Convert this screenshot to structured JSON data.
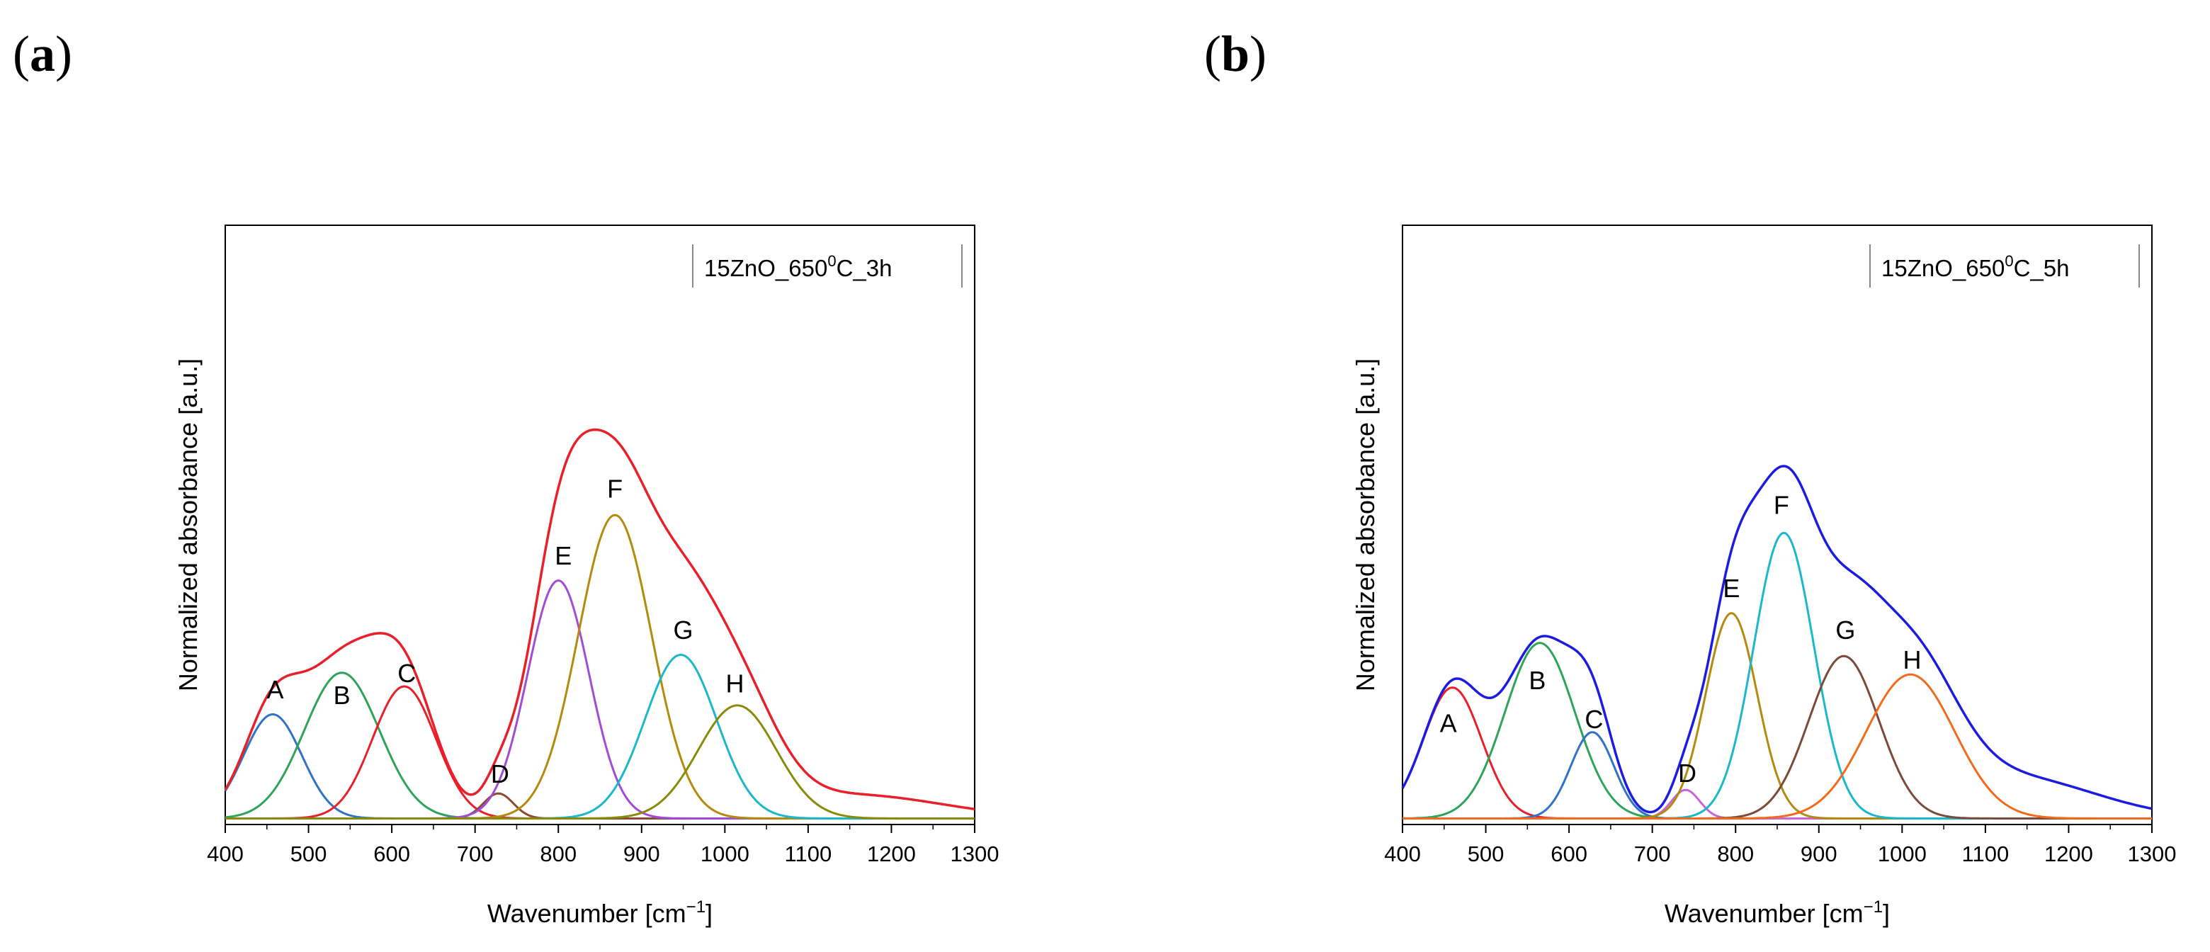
{
  "figure": {
    "panels": [
      "a",
      "b"
    ]
  },
  "chart_data": [
    {
      "type": "line",
      "panel_label": "a",
      "legend": {
        "text": "15ZnO_650",
        "sup": "0",
        "suffix": "C_3h",
        "placement": "top-right"
      },
      "xlabel": "Wavenumber [cm",
      "xlabel_sup": "−1",
      "xlabel_close": "]",
      "ylabel": "Normalized absorbance [a.u.]",
      "xlim": [
        400,
        1300
      ],
      "ylim": [
        0,
        1
      ],
      "xticks": [
        400,
        500,
        600,
        700,
        800,
        900,
        1000,
        1100,
        1200,
        1300
      ],
      "yticks_shown": false,
      "envelope": {
        "name": "sum",
        "color": "#e8202a",
        "baseline": 0.003
      },
      "peaks": [
        {
          "label": "A",
          "center": 457,
          "height": 0.175,
          "width": 35,
          "color": "#2f73c6",
          "label_x": 460,
          "label_y": 0.205
        },
        {
          "label": "B",
          "center": 540,
          "height": 0.245,
          "width": 45,
          "color": "#2ea35a",
          "label_x": 540,
          "label_y": 0.195
        },
        {
          "label": "C",
          "center": 615,
          "height": 0.222,
          "width": 38,
          "color": "#e8202a",
          "label_x": 618,
          "label_y": 0.232
        },
        {
          "label": "D",
          "center": 728,
          "height": 0.042,
          "width": 18,
          "color": "#8c4a32",
          "label_x": 730,
          "label_y": 0.063
        },
        {
          "label": "E",
          "center": 800,
          "height": 0.4,
          "width": 37,
          "color": "#a14bd6",
          "label_x": 806,
          "label_y": 0.43
        },
        {
          "label": "F",
          "center": 868,
          "height": 0.51,
          "width": 44,
          "color": "#b38a0e",
          "label_x": 868,
          "label_y": 0.542
        },
        {
          "label": "G",
          "center": 947,
          "height": 0.275,
          "width": 43,
          "color": "#1ab8c8",
          "label_x": 950,
          "label_y": 0.305
        },
        {
          "label": "H",
          "center": 1015,
          "height": 0.19,
          "width": 47,
          "color": "#8a8a0a",
          "label_x": 1012,
          "label_y": 0.215
        },
        {
          "label": "",
          "center": 1150,
          "height": 0.04,
          "width": 110,
          "color": "none"
        }
      ]
    },
    {
      "type": "line",
      "panel_label": "b",
      "legend": {
        "text": "15ZnO_650",
        "sup": "0",
        "suffix": "C_5h",
        "placement": "top-right"
      },
      "xlabel": "Wavenumber [cm",
      "xlabel_sup": "−1",
      "xlabel_close": "]",
      "ylabel": "Normalized absorbance [a.u.]",
      "xlim": [
        400,
        1300
      ],
      "ylim": [
        0,
        1
      ],
      "xticks": [
        400,
        500,
        600,
        700,
        800,
        900,
        1000,
        1100,
        1200,
        1300
      ],
      "yticks_shown": false,
      "envelope": {
        "name": "sum",
        "color": "#1c1ce0",
        "baseline": 0.003
      },
      "peaks": [
        {
          "label": "A",
          "center": 460,
          "height": 0.22,
          "width": 35,
          "color": "#e8202a",
          "label_x": 455,
          "label_y": 0.148
        },
        {
          "label": "B",
          "center": 565,
          "height": 0.295,
          "width": 42,
          "color": "#2ea35a",
          "label_x": 562,
          "label_y": 0.22
        },
        {
          "label": "C",
          "center": 628,
          "height": 0.145,
          "width": 26,
          "color": "#2f73c6",
          "label_x": 630,
          "label_y": 0.155
        },
        {
          "label": "D",
          "center": 740,
          "height": 0.048,
          "width": 17,
          "color": "#c866d8",
          "label_x": 742,
          "label_y": 0.064
        },
        {
          "label": "E",
          "center": 795,
          "height": 0.345,
          "width": 31,
          "color": "#b38a0e",
          "label_x": 795,
          "label_y": 0.375
        },
        {
          "label": "F",
          "center": 858,
          "height": 0.48,
          "width": 36,
          "color": "#1ab8c8",
          "label_x": 855,
          "label_y": 0.515
        },
        {
          "label": "G",
          "center": 930,
          "height": 0.273,
          "width": 42,
          "color": "#7a4a3a",
          "label_x": 932,
          "label_y": 0.305
        },
        {
          "label": "H",
          "center": 1010,
          "height": 0.242,
          "width": 53,
          "color": "#f26a1b",
          "label_x": 1012,
          "label_y": 0.255
        },
        {
          "label": "",
          "center": 1130,
          "height": 0.07,
          "width": 100,
          "color": "none"
        }
      ]
    }
  ]
}
